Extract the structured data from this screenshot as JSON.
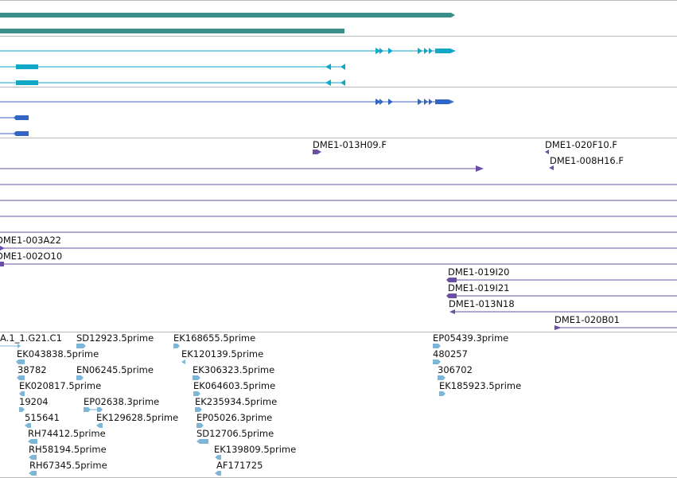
{
  "colors": {
    "background": "#ffffff",
    "separator": "#b9b9b9",
    "gene_teal": "#3a8f8a",
    "transcript_cyan": "#11a8c8",
    "transcript_blue": "#3366c4",
    "clone_purple": "#6a4fa6",
    "est_lightblue": "#7eb6d8",
    "label_text": "#111111"
  },
  "clone_labels": [
    "DME1-013H09.F",
    "DME1-020F10.F",
    "DME1-008H16.F",
    "DME1-003A22",
    "DME1-002O10",
    "DME1-019I20",
    "DME1-019I21",
    "DME1-013N18",
    "DME1-020B01"
  ],
  "est_labels": [
    "A.1_1.G21.C1",
    "SD12923.5prime",
    "EK168655.5prime",
    "EP05439.3prime",
    "EK043838.5prime",
    "EK120139.5prime",
    "480257",
    "38782",
    "EN06245.5prime",
    "EK306323.5prime",
    "306702",
    "EK020817.5prime",
    "EK064603.5prime",
    "EK185923.5prime",
    "19204",
    "EP02638.3prime",
    "EK235934.5prime",
    "515641",
    "EK129628.5prime",
    "EP05026.3prime",
    "RH74412.5prime",
    "SD12706.5prime",
    "RH58194.5prime",
    "EK139809.5prime",
    "RH67345.5prime",
    "AF171725"
  ]
}
